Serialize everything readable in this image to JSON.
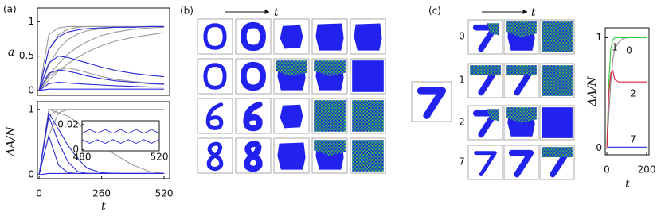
{
  "panels": {
    "labels": [
      "(a)",
      "(b)",
      "(c)"
    ],
    "b_axis": "t",
    "c_axis": "t",
    "c_rows": [
      "0",
      "1",
      "2",
      "7"
    ]
  },
  "chart_data": [
    {
      "type": "line",
      "ylabel": "a",
      "xlim": [
        -7,
        543
      ],
      "ylim": [
        -0.07,
        1.2
      ],
      "yticks": [
        0,
        0.5,
        1
      ],
      "x": [
        0,
        40,
        80,
        120,
        160,
        200,
        260,
        320,
        390,
        460,
        520
      ],
      "series": [
        {
          "color": "#999999",
          "values": [
            0,
            0.81,
            0.91,
            0.93,
            0.93,
            0.93,
            0.93,
            0.93,
            0.93,
            0.93,
            0.93
          ]
        },
        {
          "color": "#999999",
          "values": [
            0,
            0.59,
            0.81,
            0.89,
            0.92,
            0.93,
            0.93,
            0.93,
            0.93,
            0.93,
            0.93
          ]
        },
        {
          "color": "#999999",
          "values": [
            0,
            0.37,
            0.6,
            0.74,
            0.82,
            0.87,
            0.9,
            0.92,
            0.92,
            0.93,
            0.93
          ]
        },
        {
          "color": "#999999",
          "values": [
            0,
            0.22,
            0.39,
            0.53,
            0.63,
            0.71,
            0.8,
            0.85,
            0.89,
            0.91,
            0.92
          ]
        },
        {
          "color": "#999999",
          "values": [
            0,
            0.15,
            0.28,
            0.39,
            0.48,
            0.56,
            0.65,
            0.72,
            0.77,
            0.81,
            0.84
          ]
        },
        {
          "color": "#999999",
          "values": [
            0,
            0.2,
            0.3,
            0.33,
            0.3,
            0.26,
            0.2,
            0.16,
            0.13,
            0.11,
            0.1
          ]
        },
        {
          "color": "#2a2ad8",
          "values": [
            0,
            0.6,
            0.78,
            0.85,
            0.88,
            0.9,
            0.91,
            0.92,
            0.92,
            0.93,
            0.93
          ]
        },
        {
          "color": "#2a2ad8",
          "values": [
            0,
            0.4,
            0.5,
            0.48,
            0.44,
            0.4,
            0.34,
            0.29,
            0.25,
            0.22,
            0.2
          ]
        },
        {
          "color": "#2a2ad8",
          "values": [
            0,
            0.25,
            0.3,
            0.28,
            0.25,
            0.21,
            0.17,
            0.14,
            0.12,
            0.1,
            0.09
          ]
        },
        {
          "color": "#2a2ad8",
          "values": [
            0,
            0.1,
            0.12,
            0.11,
            0.1,
            0.09,
            0.08,
            0.07,
            0.06,
            0.05,
            0.05
          ]
        },
        {
          "color": "#2a2ad8",
          "values": [
            0,
            0.02,
            0.02,
            0.02,
            0.02,
            0.02,
            0.02,
            0.02,
            0.02,
            0.02,
            0.02
          ]
        }
      ]
    },
    {
      "type": "line",
      "ylabel": "ΔA/N",
      "xlabel": "t",
      "xlim": [
        -7,
        543
      ],
      "ylim": [
        -0.06,
        1.12
      ],
      "xticks": [
        0,
        260,
        520
      ],
      "yticks": [
        0,
        1
      ],
      "x": [
        0,
        40,
        80,
        120,
        160,
        200,
        260,
        320,
        390,
        460,
        520
      ],
      "series": [
        {
          "color": "#999999",
          "values": [
            0,
            1,
            1,
            1,
            1,
            1,
            1,
            1,
            1,
            1,
            1
          ]
        },
        {
          "color": "#999999",
          "values": [
            0,
            0.9,
            1,
            1,
            1,
            1,
            1,
            1,
            1,
            1,
            1
          ]
        },
        {
          "color": "#999999",
          "values": [
            0,
            0.6,
            0.95,
            1,
            1,
            1,
            1,
            1,
            1,
            1,
            1
          ]
        },
        {
          "color": "#999999",
          "values": [
            0,
            1,
            0.95,
            0.9,
            0.8,
            0.65,
            0.45,
            0.3,
            0.15,
            0.05,
            0.02
          ]
        },
        {
          "color": "#2a2ad8",
          "values": [
            0,
            0.95,
            0.7,
            0.45,
            0.25,
            0.1,
            0.03,
            0.02,
            0.02,
            0.02,
            0.02
          ]
        },
        {
          "color": "#2a2ad8",
          "values": [
            0,
            0.9,
            0.5,
            0.2,
            0.05,
            0.02,
            0.02,
            0.02,
            0.02,
            0.02,
            0.02
          ]
        },
        {
          "color": "#2a2ad8",
          "values": [
            0,
            0.6,
            0.15,
            0.03,
            0.02,
            0.02,
            0.02,
            0.02,
            0.02,
            0.02,
            0.02
          ]
        },
        {
          "color": "#2a2ad8",
          "values": [
            0,
            0.02,
            0.02,
            0.02,
            0.02,
            0.02,
            0.02,
            0.02,
            0.02,
            0.02,
            0.02
          ]
        }
      ]
    },
    {
      "type": "line",
      "xlim": [
        480,
        520
      ],
      "ylim": [
        -0.001,
        0.023
      ],
      "xticks": [
        480,
        520
      ],
      "yticks": [
        0,
        0.02
      ],
      "x": [
        480,
        484,
        488,
        492,
        496,
        500,
        504,
        508,
        512,
        516,
        520
      ],
      "series": [
        {
          "color": "#2a2ad8",
          "values": [
            0.013,
            0.016,
            0.013,
            0.016,
            0.013,
            0.016,
            0.013,
            0.016,
            0.013,
            0.016,
            0.013
          ]
        },
        {
          "color": "#2a2ad8",
          "values": [
            0.008,
            0.005,
            0.008,
            0.005,
            0.008,
            0.005,
            0.008,
            0.005,
            0.008,
            0.005,
            0.008
          ]
        }
      ]
    },
    {
      "type": "line",
      "ylabel": "ΔA/N",
      "xlabel": "t",
      "xlim": [
        -8,
        212
      ],
      "ylim": [
        -0.06,
        1.09
      ],
      "xticks": [
        0,
        200
      ],
      "yticks": [
        0,
        1
      ],
      "x": [
        0,
        10,
        20,
        30,
        40,
        60,
        80,
        100,
        150,
        200
      ],
      "series": [
        {
          "name": "0",
          "color": "#888888",
          "values": [
            0,
            0.3,
            0.6,
            0.8,
            0.9,
            0.96,
            0.99,
            1,
            1,
            1
          ]
        },
        {
          "name": "1",
          "color": "#33cc33",
          "values": [
            0,
            0.6,
            0.9,
            0.98,
            1,
            1,
            1,
            1,
            1,
            1
          ]
        },
        {
          "name": "2",
          "color": "#dd2244",
          "values": [
            0,
            0.5,
            0.68,
            0.7,
            0.62,
            0.6,
            0.6,
            0.6,
            0.6,
            0.6
          ]
        },
        {
          "name": "7",
          "color": "#2233dd",
          "values": [
            0,
            0.01,
            0.01,
            0.01,
            0.01,
            0.01,
            0.01,
            0.01,
            0.01,
            0.01
          ]
        }
      ]
    }
  ]
}
